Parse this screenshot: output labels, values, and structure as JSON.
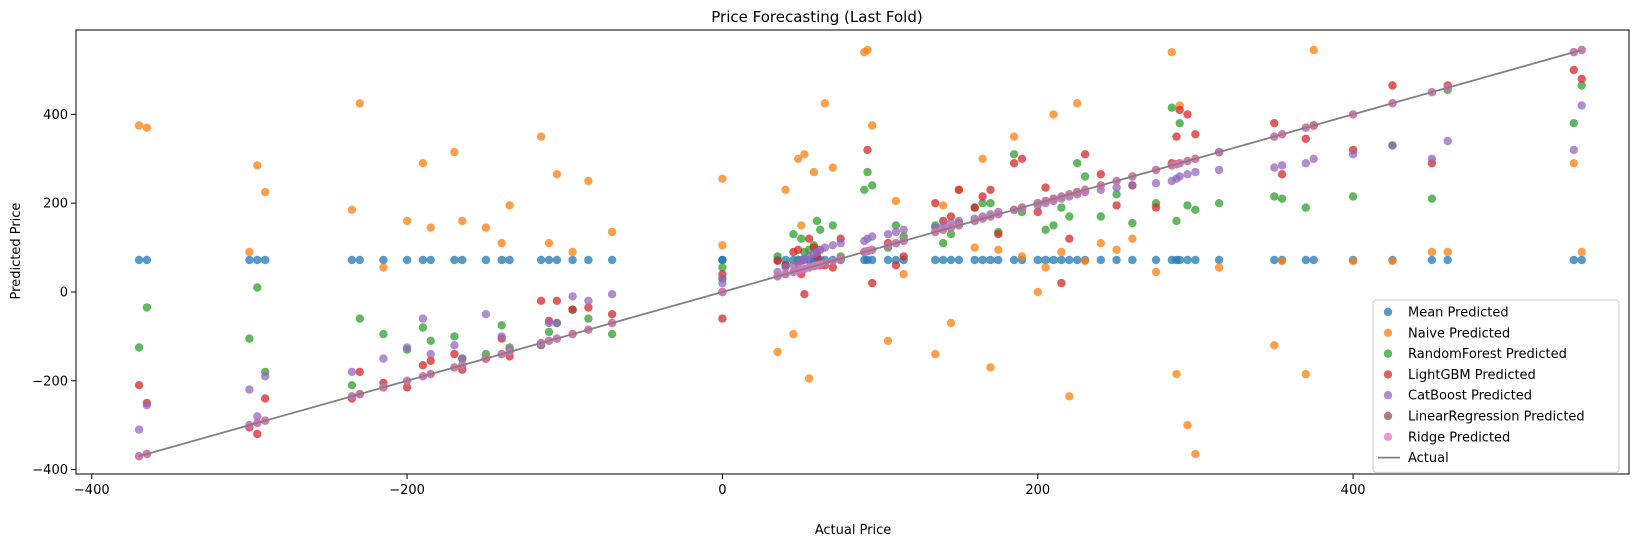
{
  "chart_data": {
    "type": "scatter",
    "title": "Price Forecasting (Last Fold)",
    "xlabel": "Actual Price",
    "ylabel": "Predicted Price",
    "xlim": [
      -410,
      575
    ],
    "ylim": [
      -410,
      590
    ],
    "xticks": [
      -400,
      -200,
      0,
      200,
      400
    ],
    "yticks": [
      -400,
      -200,
      0,
      200,
      400
    ],
    "legend_position": "lower-right",
    "x": [
      -370,
      -365,
      -300,
      -295,
      -290,
      -235,
      -230,
      -215,
      -200,
      -190,
      -185,
      -170,
      -165,
      -150,
      -140,
      -135,
      -115,
      -110,
      -105,
      -95,
      -85,
      -70,
      0,
      0,
      35,
      40,
      45,
      48,
      50,
      52,
      55,
      58,
      60,
      62,
      65,
      70,
      75,
      90,
      92,
      95,
      105,
      110,
      115,
      135,
      140,
      145,
      150,
      160,
      165,
      170,
      175,
      185,
      190,
      200,
      205,
      210,
      215,
      220,
      225,
      230,
      240,
      250,
      260,
      275,
      285,
      288,
      290,
      295,
      300,
      315,
      350,
      355,
      370,
      375,
      400,
      425,
      450,
      460,
      540,
      545
    ],
    "series": [
      {
        "name": "Mean Predicted",
        "color": "#1f77b4",
        "y": [
          72,
          72,
          72,
          72,
          72,
          72,
          72,
          72,
          72,
          72,
          72,
          72,
          72,
          72,
          72,
          72,
          72,
          72,
          72,
          72,
          72,
          72,
          72,
          72,
          72,
          72,
          72,
          72,
          72,
          72,
          72,
          72,
          72,
          72,
          72,
          72,
          72,
          72,
          72,
          72,
          72,
          72,
          72,
          72,
          72,
          72,
          72,
          72,
          72,
          72,
          72,
          72,
          72,
          72,
          72,
          72,
          72,
          72,
          72,
          72,
          72,
          72,
          72,
          72,
          72,
          72,
          72,
          72,
          72,
          72,
          72,
          72,
          72,
          72,
          72,
          72,
          72,
          72,
          72,
          72
        ]
      },
      {
        "name": "Naive Predicted",
        "color": "#ff7f0e",
        "y": [
          375,
          370,
          90,
          285,
          225,
          185,
          425,
          55,
          160,
          290,
          145,
          315,
          160,
          145,
          110,
          195,
          350,
          110,
          265,
          90,
          250,
          135,
          255,
          105,
          -135,
          230,
          -95,
          300,
          150,
          310,
          -195,
          270,
          90,
          95,
          425,
          280,
          75,
          540,
          545,
          375,
          -110,
          205,
          40,
          -140,
          195,
          -70,
          230,
          100,
          300,
          -170,
          95,
          350,
          80,
          0,
          55,
          400,
          90,
          -235,
          425,
          70,
          110,
          95,
          120,
          45,
          540,
          -185,
          420,
          -300,
          -365,
          55,
          -120,
          70,
          -185,
          545,
          70,
          70,
          90,
          90,
          290,
          90
        ]
      },
      {
        "name": "RandomForest Predicted",
        "color": "#2ca02c",
        "y": [
          -125,
          -35,
          -105,
          10,
          -180,
          -210,
          -60,
          -95,
          -130,
          -80,
          -110,
          -100,
          -150,
          -140,
          -75,
          -125,
          -120,
          -90,
          -70,
          -40,
          -60,
          -95,
          55,
          30,
          80,
          60,
          130,
          70,
          120,
          90,
          95,
          105,
          160,
          140,
          65,
          150,
          80,
          230,
          270,
          240,
          100,
          150,
          125,
          150,
          110,
          130,
          155,
          190,
          200,
          200,
          135,
          310,
          180,
          200,
          140,
          150,
          190,
          170,
          290,
          260,
          170,
          220,
          155,
          200,
          415,
          160,
          380,
          195,
          185,
          200,
          215,
          210,
          190,
          375,
          215,
          330,
          210,
          455,
          380,
          465
        ]
      },
      {
        "name": "LightGBM Predicted",
        "color": "#d62728",
        "y": [
          -210,
          -250,
          -305,
          -320,
          -240,
          -240,
          -180,
          -205,
          -215,
          -165,
          -155,
          -140,
          -175,
          -150,
          -105,
          -145,
          -20,
          -65,
          -20,
          -40,
          -35,
          -50,
          -60,
          40,
          70,
          60,
          90,
          95,
          40,
          -5,
          120,
          100,
          80,
          60,
          60,
          55,
          120,
          90,
          320,
          20,
          110,
          60,
          80,
          200,
          160,
          170,
          230,
          190,
          215,
          230,
          130,
          290,
          300,
          180,
          235,
          210,
          20,
          120,
          225,
          310,
          265,
          195,
          240,
          190,
          290,
          350,
          410,
          400,
          355,
          315,
          380,
          265,
          345,
          375,
          320,
          465,
          290,
          465,
          500,
          480
        ]
      },
      {
        "name": "CatBoost Predicted",
        "color": "#9467bd",
        "y": [
          -310,
          -255,
          -220,
          -280,
          -190,
          -180,
          -230,
          -150,
          -125,
          -60,
          -140,
          -120,
          -150,
          -50,
          -100,
          -130,
          -120,
          -70,
          -70,
          -10,
          -20,
          -5,
          20,
          30,
          45,
          55,
          60,
          65,
          70,
          75,
          80,
          85,
          90,
          95,
          100,
          105,
          110,
          115,
          120,
          125,
          130,
          135,
          140,
          145,
          150,
          155,
          160,
          165,
          170,
          175,
          180,
          185,
          190,
          195,
          200,
          205,
          210,
          215,
          220,
          225,
          230,
          235,
          240,
          245,
          250,
          255,
          260,
          265,
          270,
          275,
          280,
          285,
          290,
          300,
          310,
          330,
          300,
          340,
          320,
          420
        ]
      },
      {
        "name": "LinearRegression Predicted",
        "color": "#8c564b",
        "y": [
          -370,
          -365,
          -300,
          -295,
          -290,
          -235,
          -230,
          -215,
          -200,
          -190,
          -185,
          -170,
          -165,
          -150,
          -140,
          -135,
          -115,
          -110,
          -105,
          -95,
          -85,
          -70,
          0,
          0,
          35,
          40,
          45,
          48,
          50,
          52,
          55,
          58,
          60,
          62,
          65,
          70,
          75,
          90,
          92,
          95,
          105,
          110,
          115,
          135,
          140,
          145,
          150,
          160,
          165,
          170,
          175,
          185,
          190,
          200,
          205,
          210,
          215,
          220,
          225,
          230,
          240,
          250,
          260,
          275,
          285,
          288,
          290,
          295,
          300,
          315,
          350,
          355,
          370,
          375,
          400,
          425,
          450,
          460,
          540,
          545
        ]
      },
      {
        "name": "Ridge Predicted",
        "color": "#e377c2",
        "y": [
          -370,
          -365,
          -300,
          -295,
          -290,
          -235,
          -230,
          -215,
          -200,
          -190,
          -185,
          -170,
          -165,
          -150,
          -140,
          -135,
          -115,
          -110,
          -105,
          -95,
          -85,
          -70,
          0,
          0,
          35,
          40,
          45,
          48,
          50,
          52,
          55,
          58,
          60,
          62,
          65,
          70,
          75,
          90,
          92,
          95,
          105,
          110,
          115,
          135,
          140,
          145,
          150,
          160,
          165,
          170,
          175,
          185,
          190,
          200,
          205,
          210,
          215,
          220,
          225,
          230,
          240,
          250,
          260,
          275,
          285,
          288,
          290,
          295,
          300,
          315,
          350,
          355,
          370,
          375,
          400,
          425,
          450,
          460,
          540,
          545
        ]
      }
    ],
    "line": {
      "name": "Actual",
      "color": "#808080",
      "x": [
        -370,
        545
      ],
      "y": [
        -370,
        545
      ]
    }
  }
}
